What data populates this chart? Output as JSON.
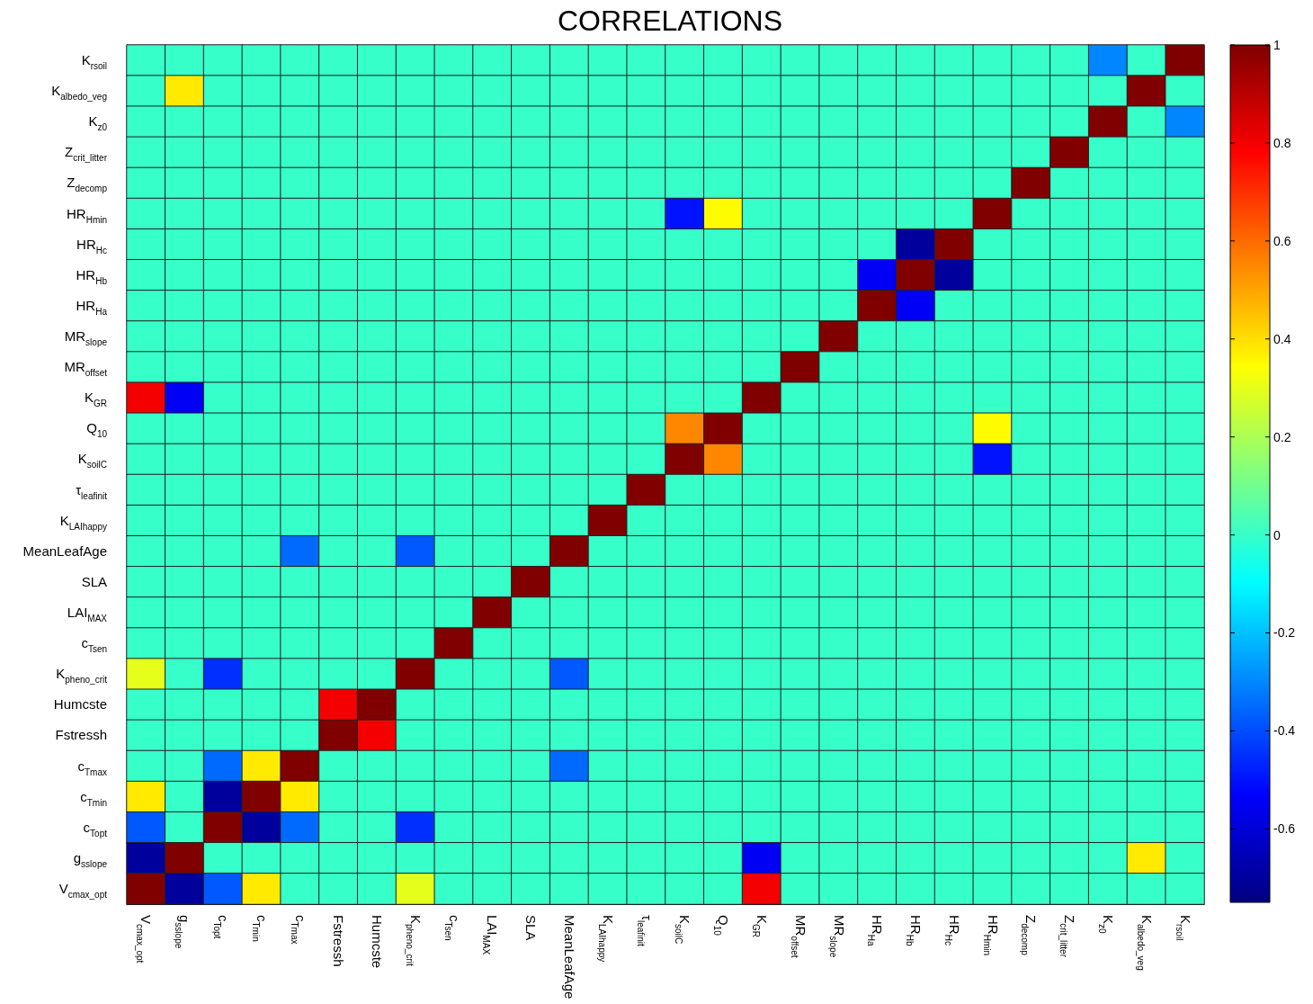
{
  "chart_data": {
    "type": "heatmap",
    "title": "CORRELATIONS",
    "categories": [
      "V$_{cmax_opt}$",
      "g$_{sslope}$",
      "c$_{Topt}$",
      "c$_{Tmin}$",
      "c$_{Tmax}$",
      "Fstressh",
      "Humcste",
      "K$_{pheno_crit}$",
      "c$_{Tsen}$",
      "LAI$_{MAX}$",
      "SLA",
      "MeanLeafAge",
      "K$_{LAIhappy}$",
      "τ$_{leafinit}$",
      "K$_{soilC}$",
      "Q$_{10}$",
      "K$_{GR}$",
      "MR$_{offset}$",
      "MR$_{slope}$",
      "HR$_{Ha}$",
      "HR$_{Hb}$",
      "HR$_{Hc}$",
      "HR$_{Hmin}$",
      "Z$_{decomp}$",
      "Z$_{crit_litter}$",
      "K$_{z0}$",
      "K$_{albedo_veg}$",
      "K$_{rsoil}$"
    ],
    "y_categories": [
      "K$_{rsoil}$",
      "K$_{albedo_veg}$",
      "K$_{z0}$",
      "Z$_{crit_litter}$",
      "Z$_{decomp}$",
      "HR$_{Hmin}$",
      "HR$_{Hc}$",
      "HR$_{Hb}$",
      "HR$_{Ha}$",
      "MR$_{slope}$",
      "MR$_{offset}$",
      "K$_{GR}$",
      "Q$_{10}$",
      "K$_{soilC}$",
      "τ$_{leafinit}$",
      "K$_{LAIhappy}$",
      "MeanLeafAge",
      "SLA",
      "LAI$_{MAX}$",
      "c$_{Tsen}$",
      "K$_{pheno_crit}$",
      "Humcste",
      "Fstressh",
      "c$_{Tmax}$",
      "c$_{Tmin}$",
      "c$_{Topt}$",
      "g$_{sslope}$",
      "V$_{cmax_opt}$"
    ],
    "cells": [
      [
        0,
        0,
        0,
        0,
        0,
        0,
        0,
        0,
        0,
        0,
        0,
        0,
        0,
        0,
        0,
        0,
        0,
        0,
        0,
        0,
        0,
        0,
        0,
        0,
        0,
        -0.3,
        0,
        1
      ],
      [
        0,
        0.38,
        0,
        0,
        0,
        0,
        0,
        0,
        0,
        0,
        0,
        0,
        0,
        0,
        0,
        0,
        0,
        0,
        0,
        0,
        0,
        0,
        0,
        0,
        0,
        0,
        1,
        0
      ],
      [
        0,
        0,
        0,
        0,
        0,
        0,
        0,
        0,
        0,
        0,
        0,
        0,
        0,
        0,
        0,
        0,
        0,
        0,
        0,
        0,
        0,
        0,
        0,
        0,
        0,
        1,
        0,
        -0.3
      ],
      [
        0,
        0,
        0,
        0,
        0,
        0,
        0,
        0,
        0,
        0,
        0,
        0,
        0,
        0,
        0,
        0,
        0,
        0,
        0,
        0,
        0,
        0,
        0,
        0,
        1,
        0,
        0,
        0
      ],
      [
        0,
        0,
        0,
        0,
        0,
        0,
        0,
        0,
        0,
        0,
        0,
        0,
        0,
        0,
        0,
        0,
        0,
        0,
        0,
        0,
        0,
        0,
        0,
        1,
        0,
        0,
        0,
        0
      ],
      [
        0,
        0,
        0,
        0,
        0,
        0,
        0,
        0,
        0,
        0,
        0,
        0,
        0,
        0,
        -0.5,
        0.35,
        0,
        0,
        0,
        0,
        0,
        0,
        1,
        0,
        0,
        0,
        0,
        0
      ],
      [
        0,
        0,
        0,
        0,
        0,
        0,
        0,
        0,
        0,
        0,
        0,
        0,
        0,
        0,
        0,
        0,
        0,
        0,
        0,
        0,
        -0.7,
        1,
        0,
        0,
        0,
        0,
        0,
        0
      ],
      [
        0,
        0,
        0,
        0,
        0,
        0,
        0,
        0,
        0,
        0,
        0,
        0,
        0,
        0,
        0,
        0,
        0,
        0,
        0,
        -0.55,
        1,
        -0.7,
        0,
        0,
        0,
        0,
        0,
        0
      ],
      [
        0,
        0,
        0,
        0,
        0,
        0,
        0,
        0,
        0,
        0,
        0,
        0,
        0,
        0,
        0,
        0,
        0,
        0,
        0,
        1,
        -0.55,
        0,
        0,
        0,
        0,
        0,
        0,
        0
      ],
      [
        0,
        0,
        0,
        0,
        0,
        0,
        0,
        0,
        0,
        0,
        0,
        0,
        0,
        0,
        0,
        0,
        0,
        0,
        1,
        0,
        0,
        0,
        0,
        0,
        0,
        0,
        0,
        0
      ],
      [
        0,
        0,
        0,
        0,
        0,
        0,
        0,
        0,
        0,
        0,
        0,
        0,
        0,
        0,
        0,
        0,
        0,
        1,
        0,
        0,
        0,
        0,
        0,
        0,
        0,
        0,
        0,
        0
      ],
      [
        0.8,
        -0.55,
        0,
        0,
        0,
        0,
        0,
        0,
        0,
        0,
        0,
        0,
        0,
        0,
        0,
        0,
        1,
        0,
        0,
        0,
        0,
        0,
        0,
        0,
        0,
        0,
        0,
        0
      ],
      [
        0,
        0,
        0,
        0,
        0,
        0,
        0,
        0,
        0,
        0,
        0,
        0,
        0,
        0,
        0.55,
        1,
        0,
        0,
        0,
        0,
        0,
        0,
        0.35,
        0,
        0,
        0,
        0,
        0
      ],
      [
        0,
        0,
        0,
        0,
        0,
        0,
        0,
        0,
        0,
        0,
        0,
        0,
        0,
        0,
        1,
        0.55,
        0,
        0,
        0,
        0,
        0,
        0,
        -0.5,
        0,
        0,
        0,
        0,
        0
      ],
      [
        0,
        0,
        0,
        0,
        0,
        0,
        0,
        0,
        0,
        0,
        0,
        0,
        0,
        1,
        0,
        0,
        0,
        0,
        0,
        0,
        0,
        0,
        0,
        0,
        0,
        0,
        0,
        0
      ],
      [
        0,
        0,
        0,
        0,
        0,
        0,
        0,
        0,
        0,
        0,
        0,
        0,
        1,
        0,
        0,
        0,
        0,
        0,
        0,
        0,
        0,
        0,
        0,
        0,
        0,
        0,
        0,
        0
      ],
      [
        0,
        0,
        0,
        0,
        -0.35,
        0,
        0,
        -0.38,
        0,
        0,
        0,
        1,
        0,
        0,
        0,
        0,
        0,
        0,
        0,
        0,
        0,
        0,
        0,
        0,
        0,
        0,
        0,
        0
      ],
      [
        0,
        0,
        0,
        0,
        0,
        0,
        0,
        0,
        0,
        0,
        1,
        0,
        0,
        0,
        0,
        0,
        0,
        0,
        0,
        0,
        0,
        0,
        0,
        0,
        0,
        0,
        0,
        0
      ],
      [
        0,
        0,
        0,
        0,
        0,
        0,
        0,
        0,
        0,
        1,
        0,
        0,
        0,
        0,
        0,
        0,
        0,
        0,
        0,
        0,
        0,
        0,
        0,
        0,
        0,
        0,
        0,
        0
      ],
      [
        0,
        0,
        0,
        0,
        0,
        0,
        0,
        0,
        1,
        0,
        0,
        0,
        0,
        0,
        0,
        0,
        0,
        0,
        0,
        0,
        0,
        0,
        0,
        0,
        0,
        0,
        0,
        0
      ],
      [
        0.3,
        0,
        -0.45,
        0,
        0,
        0,
        0,
        1,
        0,
        0,
        0,
        -0.38,
        0,
        0,
        0,
        0,
        0,
        0,
        0,
        0,
        0,
        0,
        0,
        0,
        0,
        0,
        0,
        0
      ],
      [
        0,
        0,
        0,
        0,
        0,
        0.8,
        1,
        0,
        0,
        0,
        0,
        0,
        0,
        0,
        0,
        0,
        0,
        0,
        0,
        0,
        0,
        0,
        0,
        0,
        0,
        0,
        0,
        0
      ],
      [
        0,
        0,
        0,
        0,
        0,
        1,
        0.8,
        0,
        0,
        0,
        0,
        0,
        0,
        0,
        0,
        0,
        0,
        0,
        0,
        0,
        0,
        0,
        0,
        0,
        0,
        0,
        0,
        0
      ],
      [
        0,
        0,
        -0.35,
        0.38,
        1,
        0,
        0,
        0,
        0,
        0,
        0,
        -0.35,
        0,
        0,
        0,
        0,
        0,
        0,
        0,
        0,
        0,
        0,
        0,
        0,
        0,
        0,
        0,
        0
      ],
      [
        0.38,
        0,
        -0.7,
        1,
        0.38,
        0,
        0,
        0,
        0,
        0,
        0,
        0,
        0,
        0,
        0,
        0,
        0,
        0,
        0,
        0,
        0,
        0,
        0,
        0,
        0,
        0,
        0,
        0
      ],
      [
        -0.38,
        0,
        1,
        -0.7,
        -0.35,
        0,
        0,
        -0.45,
        0,
        0,
        0,
        0,
        0,
        0,
        0,
        0,
        0,
        0,
        0,
        0,
        0,
        0,
        0,
        0,
        0,
        0,
        0,
        0
      ],
      [
        -0.7,
        1,
        0,
        0,
        0,
        0,
        0,
        0,
        0,
        0,
        0,
        0,
        0,
        0,
        0,
        0,
        -0.55,
        0,
        0,
        0,
        0,
        0,
        0,
        0,
        0,
        0,
        0.38,
        0
      ],
      [
        1,
        -0.7,
        -0.38,
        0.38,
        0,
        0,
        0,
        0.3,
        0,
        0,
        0,
        0,
        0,
        0,
        0,
        0,
        0.8,
        0,
        0,
        0,
        0,
        0,
        0,
        0,
        0,
        0,
        0,
        0
      ]
    ],
    "clim": [
      -0.75,
      1
    ],
    "cticks": [
      -0.6,
      -0.4,
      -0.2,
      0,
      0.2,
      0.4,
      0.6,
      0.8,
      1
    ]
  }
}
